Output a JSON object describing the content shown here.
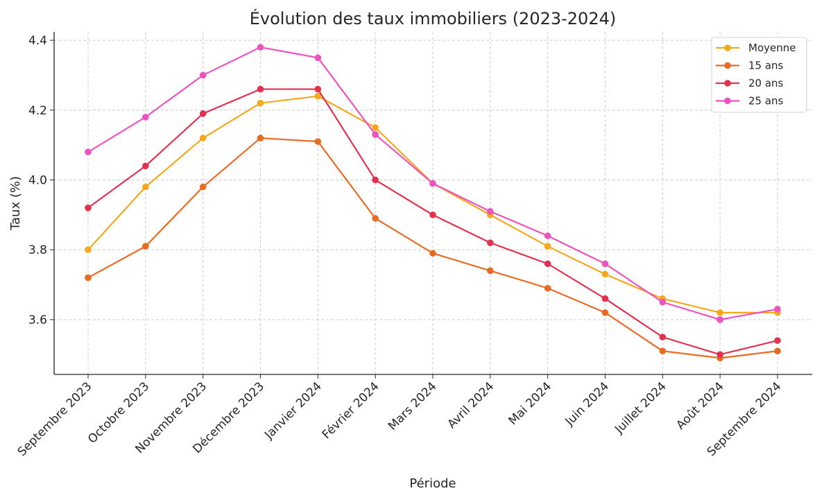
{
  "chart_data": {
    "type": "line",
    "title": "Évolution des taux immobiliers (2023-2024)",
    "xlabel": "Période",
    "ylabel": "Taux (%)",
    "ylim": [
      3.443,
      4.424
    ],
    "yticks": [
      3.6,
      3.8,
      4.0,
      4.2,
      4.4
    ],
    "ytick_labels": [
      "3.6",
      "3.8",
      "4.0",
      "4.2",
      "4.4"
    ],
    "grid": true,
    "legend": "top-right",
    "categories": [
      "Septembre 2023",
      "Octobre 2023",
      "Novembre 2023",
      "Décembre 2023",
      "Janvier 2024",
      "Février 2024",
      "Mars 2024",
      "Avril 2024",
      "Mai 2024",
      "Juin 2024",
      "Juillet 2024",
      "Août 2024",
      "Septembre 2024"
    ],
    "series": [
      {
        "name": "Moyenne",
        "color": "#f5a81c",
        "values": [
          3.8,
          3.98,
          4.12,
          4.22,
          4.24,
          4.15,
          3.99,
          3.9,
          3.81,
          3.73,
          3.66,
          3.62,
          3.62
        ]
      },
      {
        "name": "15 ans",
        "color": "#eb6a22",
        "values": [
          3.72,
          3.81,
          3.98,
          4.12,
          4.11,
          3.89,
          3.79,
          3.74,
          3.69,
          3.62,
          3.51,
          3.49,
          3.51
        ]
      },
      {
        "name": "20 ans",
        "color": "#e3324f",
        "values": [
          3.92,
          4.04,
          4.19,
          4.26,
          4.26,
          4.0,
          3.9,
          3.82,
          3.76,
          3.66,
          3.55,
          3.5,
          3.54
        ]
      },
      {
        "name": "25 ans",
        "color": "#ee52c0",
        "values": [
          4.08,
          4.18,
          4.3,
          4.38,
          4.35,
          4.13,
          3.99,
          3.91,
          3.84,
          3.76,
          3.65,
          3.6,
          3.63
        ]
      }
    ]
  }
}
